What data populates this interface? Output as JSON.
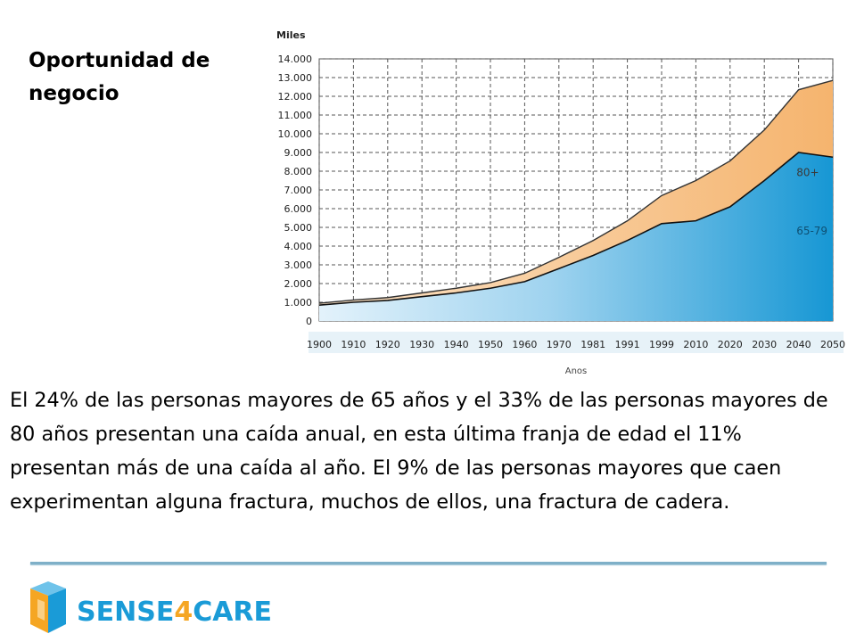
{
  "slide": {
    "title": "Oportunidad de negocio",
    "body": " El 24% de las personas mayores de 65 años y el 33% de las personas mayores de 80 años presentan una caída anual, en esta última franja de edad el 11% presentan más de una caída al año. El 9% de las personas mayores que caen experimentan alguna fractura, muchos de ellos, una fractura de cadera."
  },
  "logo": {
    "name": "SENSE4CARE",
    "icon": "cube-icon",
    "colors": {
      "text": "#1a9bd7",
      "four": "#f5a623",
      "cube_left": "#f5a623",
      "cube_right": "#1a9bd7"
    }
  },
  "colors": {
    "area_65_79": "#2ea3d8",
    "area_80plus": "#f5bd84",
    "divider": "#7fb0c8"
  },
  "chart_data": {
    "type": "area",
    "stacked": true,
    "ylabel": "Miles",
    "xlabel": "Anos",
    "categories": [
      "1900",
      "1910",
      "1920",
      "1930",
      "1940",
      "1950",
      "1960",
      "1970",
      "1981",
      "1991",
      "1999",
      "2010",
      "2020",
      "2030",
      "2040",
      "2050"
    ],
    "ylim": [
      0,
      14000
    ],
    "yticks": [
      "0",
      "1.000",
      "2.000",
      "3.000",
      "4.000",
      "5.000",
      "6.000",
      "7.000",
      "8.000",
      "9.000",
      "10.000",
      "11.000",
      "12.000",
      "13.000",
      "14.000"
    ],
    "grid": true,
    "series": [
      {
        "name": "65-79",
        "values": [
          850,
          1000,
          1100,
          1300,
          1500,
          1750,
          2100,
          2800,
          3500,
          4300,
          5200,
          5350,
          6100,
          7500,
          9000,
          8750
        ]
      },
      {
        "name": "80+",
        "values": [
          100,
          120,
          150,
          200,
          250,
          300,
          450,
          600,
          800,
          1050,
          1500,
          2150,
          2450,
          2700,
          3350,
          4100
        ]
      }
    ]
  }
}
